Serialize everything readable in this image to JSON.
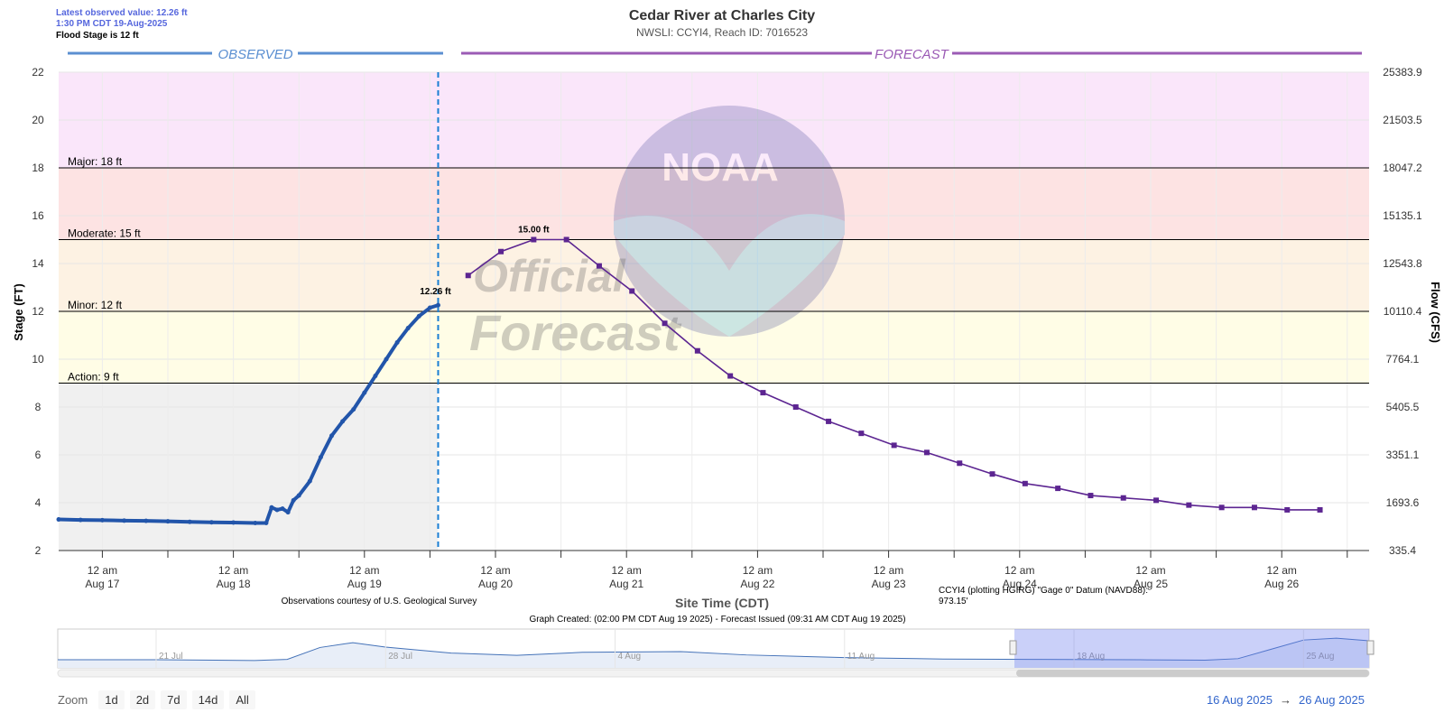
{
  "header": {
    "latest_value": "Latest observed value: 12.26 ft",
    "latest_time": "1:30 PM CDT 19-Aug-2025",
    "flood_stage_note": "Flood Stage is 12 ft"
  },
  "chart_data": {
    "type": "line",
    "title": "Cedar River at Charles City",
    "subtitle": "NWSLI: CCYI4, Reach ID: 7016523",
    "xlabel": "Site Time (CDT)",
    "ylabel": "Stage (FT)",
    "y2label": "Flow (CFS)",
    "ylim": [
      2,
      22
    ],
    "y_ticks": [
      22,
      20,
      18,
      16,
      14,
      12,
      10,
      8,
      6,
      4,
      2
    ],
    "y2_ticks": [
      "25383.9",
      "21503.5",
      "18047.2",
      "15135.1",
      "12543.8",
      "10110.4",
      "7764.1",
      "5405.5",
      "3351.1",
      "1693.6",
      "335.4"
    ],
    "xlim": [
      "2025-08-16T16:00",
      "2025-08-26T16:00"
    ],
    "x_ticks": [
      {
        "line1": "12 am",
        "line2": "Aug 17",
        "x": "2025-08-17T00:00"
      },
      {
        "line1": "12 am",
        "line2": "Aug 18",
        "x": "2025-08-18T00:00"
      },
      {
        "line1": "12 am",
        "line2": "Aug 19",
        "x": "2025-08-19T00:00"
      },
      {
        "line1": "12 am",
        "line2": "Aug 20",
        "x": "2025-08-20T00:00"
      },
      {
        "line1": "12 am",
        "line2": "Aug 21",
        "x": "2025-08-21T00:00"
      },
      {
        "line1": "12 am",
        "line2": "Aug 22",
        "x": "2025-08-22T00:00"
      },
      {
        "line1": "12 am",
        "line2": "Aug 23",
        "x": "2025-08-23T00:00"
      },
      {
        "line1": "12 am",
        "line2": "Aug 24",
        "x": "2025-08-24T00:00"
      },
      {
        "line1": "12 am",
        "line2": "Aug 25",
        "x": "2025-08-25T00:00"
      },
      {
        "line1": "12 am",
        "line2": "Aug 26",
        "x": "2025-08-26T00:00"
      }
    ],
    "section_labels": {
      "observed": "OBSERVED",
      "forecast": "FORECAST"
    },
    "flood_categories": [
      {
        "label": "Action: 9 ft",
        "value": 9,
        "color": "#fffde6"
      },
      {
        "label": "Minor: 12 ft",
        "value": 12,
        "color": "#fdf2e3"
      },
      {
        "label": "Moderate: 15 ft",
        "value": 15,
        "color": "#fde3e3"
      },
      {
        "label": "Major: 18 ft",
        "value": 18,
        "color": "#fae6fa"
      }
    ],
    "observed": {
      "name": "Observed",
      "color": "#2255aa",
      "points": [
        [
          "2025-08-16T16:00",
          3.3
        ],
        [
          "2025-08-16T20:00",
          3.28
        ],
        [
          "2025-08-17T00:00",
          3.27
        ],
        [
          "2025-08-17T04:00",
          3.25
        ],
        [
          "2025-08-17T08:00",
          3.24
        ],
        [
          "2025-08-17T12:00",
          3.22
        ],
        [
          "2025-08-17T16:00",
          3.2
        ],
        [
          "2025-08-17T20:00",
          3.18
        ],
        [
          "2025-08-18T00:00",
          3.17
        ],
        [
          "2025-08-18T04:00",
          3.15
        ],
        [
          "2025-08-18T06:00",
          3.15
        ],
        [
          "2025-08-18T07:00",
          3.8
        ],
        [
          "2025-08-18T08:00",
          3.7
        ],
        [
          "2025-08-18T09:00",
          3.75
        ],
        [
          "2025-08-18T10:00",
          3.6
        ],
        [
          "2025-08-18T11:00",
          4.1
        ],
        [
          "2025-08-18T12:00",
          4.3
        ],
        [
          "2025-08-18T14:00",
          4.9
        ],
        [
          "2025-08-18T16:00",
          5.9
        ],
        [
          "2025-08-18T18:00",
          6.8
        ],
        [
          "2025-08-18T20:00",
          7.4
        ],
        [
          "2025-08-18T22:00",
          7.9
        ],
        [
          "2025-08-19T00:00",
          8.6
        ],
        [
          "2025-08-19T02:00",
          9.3
        ],
        [
          "2025-08-19T04:00",
          10.0
        ],
        [
          "2025-08-19T06:00",
          10.7
        ],
        [
          "2025-08-19T08:00",
          11.3
        ],
        [
          "2025-08-19T10:00",
          11.8
        ],
        [
          "2025-08-19T12:00",
          12.15
        ],
        [
          "2025-08-19T13:30",
          12.26
        ]
      ],
      "label": "12.26 ft"
    },
    "forecast": {
      "name": "Forecast",
      "color": "#5c2591",
      "points": [
        [
          "2025-08-19T19:00",
          13.5
        ],
        [
          "2025-08-20T01:00",
          14.5
        ],
        [
          "2025-08-20T07:00",
          15.0
        ],
        [
          "2025-08-20T13:00",
          15.0
        ],
        [
          "2025-08-20T19:00",
          13.9
        ],
        [
          "2025-08-21T01:00",
          12.85
        ],
        [
          "2025-08-21T07:00",
          11.5
        ],
        [
          "2025-08-21T13:00",
          10.35
        ],
        [
          "2025-08-21T19:00",
          9.3
        ],
        [
          "2025-08-22T01:00",
          8.6
        ],
        [
          "2025-08-22T07:00",
          8.0
        ],
        [
          "2025-08-22T13:00",
          7.4
        ],
        [
          "2025-08-22T19:00",
          6.9
        ],
        [
          "2025-08-23T01:00",
          6.4
        ],
        [
          "2025-08-23T07:00",
          6.1
        ],
        [
          "2025-08-23T13:00",
          5.65
        ],
        [
          "2025-08-23T19:00",
          5.2
        ],
        [
          "2025-08-24T01:00",
          4.8
        ],
        [
          "2025-08-24T07:00",
          4.6
        ],
        [
          "2025-08-24T13:00",
          4.3
        ],
        [
          "2025-08-24T19:00",
          4.2
        ],
        [
          "2025-08-25T01:00",
          4.1
        ],
        [
          "2025-08-25T07:00",
          3.9
        ],
        [
          "2025-08-25T13:00",
          3.8
        ],
        [
          "2025-08-25T19:00",
          3.8
        ],
        [
          "2025-08-26T01:00",
          3.7
        ],
        [
          "2025-08-26T07:00",
          3.7
        ]
      ],
      "peak_label": "15.00 ft"
    },
    "watermark": {
      "line1": "Official",
      "line2": "Forecast",
      "seal_text": "NOAA"
    },
    "navigator": {
      "labels": [
        "21 Jul",
        "28 Jul",
        "4 Aug",
        "11 Aug",
        "18 Aug",
        "25 Aug"
      ]
    }
  },
  "footer": {
    "observations_credit": "Observations courtesy of U.S. Geological Survey",
    "datum_line1": "CCYI4 (plotting HGIRG) \"Gage 0\" Datum (NAVD88):",
    "datum_line2": "973.15'",
    "graph_created": "Graph Created: (02:00 PM CDT Aug 19 2025) - Forecast Issued (09:31 AM CDT Aug 19 2025)"
  },
  "zoom": {
    "label": "Zoom",
    "buttons": [
      "1d",
      "2d",
      "7d",
      "14d",
      "All"
    ]
  },
  "range": {
    "from": "16 Aug 2025",
    "arrow": "→",
    "to": "26 Aug 2025"
  }
}
